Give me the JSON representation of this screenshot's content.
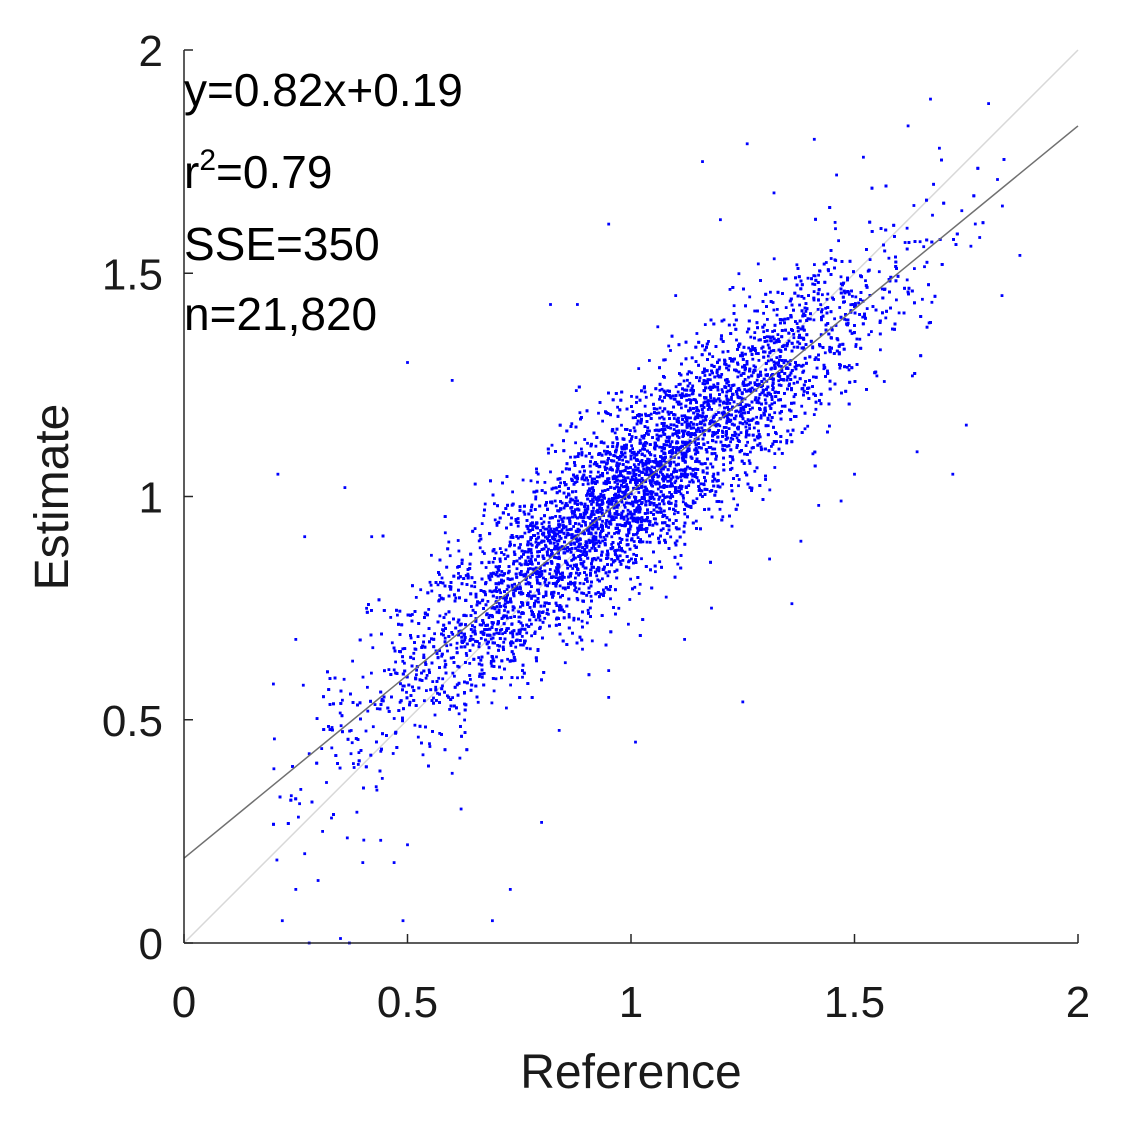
{
  "chart_data": {
    "type": "scatter",
    "title": "",
    "xlabel": "Reference",
    "ylabel": "Estimate",
    "xlim": [
      0,
      2
    ],
    "ylim": [
      0,
      2
    ],
    "x_ticks": [
      "0",
      "0.5",
      "1",
      "1.5",
      "2"
    ],
    "y_ticks": [
      "0",
      "0.5",
      "1",
      "1.5",
      "2"
    ],
    "grid": false,
    "box": "left-bottom axes only",
    "point_color": "#0000ff",
    "fit_line": {
      "slope": 0.82,
      "intercept": 0.19,
      "color": "#707070"
    },
    "identity_line": {
      "slope": 1,
      "intercept": 0,
      "color": "#d8d8d8"
    },
    "annotations": {
      "equation": "y=0.82x+0.19",
      "r2_prefix": "r",
      "r2_sup": "2",
      "r2_value": "=0.79",
      "sse": "SSE=350",
      "n": "n=21,820"
    },
    "n_points": 21820,
    "point_distribution_note": "dense cloud along fit line",
    "cloud": {
      "x_mean": 1.0,
      "x_sd": 0.28,
      "x_min": 0.2,
      "x_max": 1.85,
      "residual_sd": 0.1
    },
    "outliers": [
      [
        0.21,
        1.05
      ],
      [
        0.5,
        1.3
      ],
      [
        0.36,
        1.02
      ],
      [
        0.27,
        0.91
      ],
      [
        0.42,
        0.91
      ],
      [
        0.25,
        0.68
      ],
      [
        0.2,
        0.58
      ],
      [
        0.6,
        1.26
      ],
      [
        0.82,
        1.43
      ],
      [
        0.88,
        1.43
      ],
      [
        0.95,
        1.61
      ],
      [
        1.06,
        1.38
      ],
      [
        1.26,
        1.79
      ],
      [
        1.16,
        1.75
      ],
      [
        1.41,
        1.8
      ],
      [
        1.67,
        1.89
      ],
      [
        1.8,
        1.88
      ],
      [
        1.82,
        1.71
      ],
      [
        1.57,
        1.4
      ],
      [
        1.36,
        0.76
      ],
      [
        1.25,
        0.54
      ],
      [
        1.01,
        0.45
      ],
      [
        0.95,
        0.55
      ],
      [
        0.95,
        0.61
      ],
      [
        0.8,
        0.27
      ],
      [
        0.73,
        0.12
      ],
      [
        0.69,
        0.05
      ],
      [
        0.5,
        0.22
      ],
      [
        0.49,
        0.05
      ],
      [
        0.37,
        0.0
      ],
      [
        0.35,
        0.01
      ],
      [
        0.28,
        0.0
      ],
      [
        0.22,
        0.05
      ],
      [
        0.25,
        0.12
      ],
      [
        0.3,
        0.14
      ],
      [
        0.39,
        0.4
      ],
      [
        0.43,
        0.35
      ],
      [
        0.55,
        0.44
      ],
      [
        0.6,
        0.38
      ],
      [
        1.75,
        1.16
      ],
      [
        1.87,
        1.54
      ],
      [
        1.83,
        1.45
      ],
      [
        1.55,
        1.27
      ],
      [
        1.72,
        1.05
      ],
      [
        1.47,
        0.99
      ],
      [
        1.31,
        0.86
      ],
      [
        0.47,
        0.18
      ],
      [
        0.31,
        0.25
      ],
      [
        0.27,
        0.2
      ],
      [
        0.24,
        0.33
      ],
      [
        0.33,
        0.28
      ],
      [
        0.4,
        0.18
      ],
      [
        0.44,
        0.23
      ],
      [
        0.62,
        0.3
      ],
      [
        0.97,
        1.2
      ],
      [
        1.1,
        1.45
      ],
      [
        1.2,
        1.62
      ],
      [
        1.32,
        1.68
      ],
      [
        1.46,
        1.72
      ],
      [
        1.52,
        1.76
      ],
      [
        1.62,
        1.83
      ],
      [
        1.69,
        1.78
      ],
      [
        1.74,
        1.64
      ],
      [
        1.78,
        1.58
      ],
      [
        1.64,
        1.1
      ],
      [
        1.5,
        1.05
      ],
      [
        1.42,
        0.98
      ],
      [
        1.38,
        0.9
      ],
      [
        1.18,
        0.75
      ],
      [
        1.12,
        0.68
      ]
    ]
  }
}
